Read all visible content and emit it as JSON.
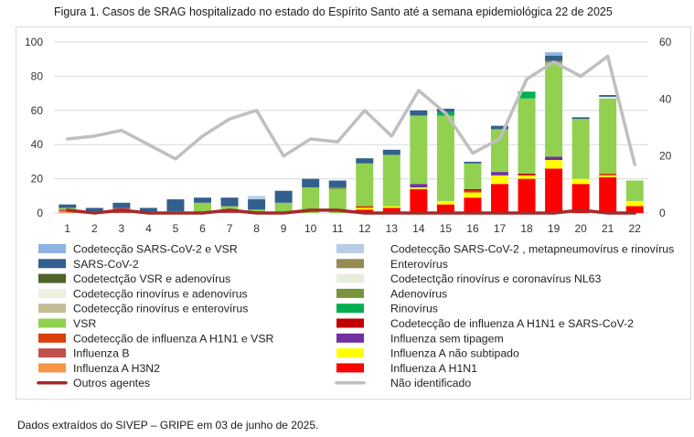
{
  "figure": {
    "title": "Figura 1. Casos de SRAG hospitalizado no estado do Espírito Santo até a semana epidemiológica 22 de 2025",
    "footnote": "Dados extraídos do SIVEP – GRIPE em 03 de junho de 2025."
  },
  "chart_data": {
    "type": "bar",
    "stacked": true,
    "title": "Casos de SRAG hospitalizado no estado do Espírito Santo até a semana epidemiológica 22 de 2025",
    "xlabel": "",
    "ylabel": "",
    "categories": [
      "1",
      "2",
      "3",
      "4",
      "5",
      "6",
      "7",
      "8",
      "9",
      "10",
      "11",
      "12",
      "13",
      "14",
      "15",
      "16",
      "17",
      "18",
      "19",
      "20",
      "21",
      "22"
    ],
    "ylim": [
      0,
      100
    ],
    "yticks": [
      0,
      20,
      40,
      60,
      80,
      100
    ],
    "y2lim": [
      0,
      60
    ],
    "y2ticks": [
      0,
      20,
      40,
      60
    ],
    "grid": true,
    "legend_position": "bottom",
    "series": [
      {
        "name": "Influenza A H1N1",
        "color": "#ff0000",
        "values": [
          0,
          0,
          0,
          0,
          0,
          0,
          0,
          0,
          0,
          0,
          0,
          2,
          3,
          14,
          5,
          9,
          17,
          20,
          26,
          17,
          21,
          4
        ]
      },
      {
        "name": "Influenza A H3N2",
        "color": "#f79646",
        "values": [
          1,
          0,
          0,
          0,
          0,
          0,
          0,
          0,
          0,
          0,
          0,
          0,
          0,
          0,
          0,
          0,
          0,
          0,
          0,
          0,
          0,
          0
        ]
      },
      {
        "name": "Influenza A não subtipado",
        "color": "#ffff00",
        "values": [
          0,
          0,
          0,
          0,
          0,
          0,
          0,
          0,
          0,
          0,
          0,
          1,
          1,
          1,
          2,
          3,
          5,
          2,
          5,
          3,
          1,
          3
        ]
      },
      {
        "name": "Influenza B",
        "color": "#c0504d",
        "values": [
          1,
          0,
          3,
          1,
          0,
          1,
          1,
          1,
          0,
          0,
          0,
          0,
          0,
          0,
          0,
          0,
          0,
          0,
          0,
          0,
          0,
          0
        ]
      },
      {
        "name": "Influenza sem tipagem",
        "color": "#7030a0",
        "values": [
          0,
          0,
          0,
          0,
          0,
          0,
          0,
          0,
          0,
          0,
          0,
          0,
          0,
          2,
          0,
          0,
          2,
          0,
          2,
          0,
          0,
          0
        ]
      },
      {
        "name": "Codetecção de influenza A H1N1 e VSR",
        "color": "#d9400a",
        "values": [
          0,
          0,
          0,
          0,
          0,
          0,
          0,
          0,
          0,
          0,
          0,
          1,
          0,
          0,
          0,
          1,
          0,
          0,
          0,
          0,
          1,
          0
        ]
      },
      {
        "name": "Codetecção de influenza A H1N1 e SARS-CoV-2",
        "color": "#c00000",
        "values": [
          0,
          0,
          0,
          0,
          0,
          0,
          0,
          0,
          0,
          0,
          0,
          0,
          0,
          0,
          0,
          1,
          0,
          1,
          0,
          0,
          0,
          0
        ]
      },
      {
        "name": "VSR",
        "color": "#92d050",
        "values": [
          1,
          0,
          0,
          0,
          1,
          5,
          3,
          1,
          6,
          15,
          14,
          25,
          30,
          40,
          50,
          15,
          25,
          44,
          55,
          35,
          44,
          12
        ]
      },
      {
        "name": "Rinovírus",
        "color": "#00b050",
        "values": [
          0,
          0,
          0,
          0,
          0,
          0,
          0,
          0,
          0,
          0,
          0,
          0,
          0,
          0,
          2,
          0,
          0,
          4,
          0,
          0,
          0,
          0
        ]
      },
      {
        "name": "Adenovírus",
        "color": "#77933c",
        "values": [
          0,
          0,
          0,
          0,
          0,
          0,
          0,
          0,
          0,
          0,
          1,
          0,
          0,
          0,
          0,
          0,
          0,
          0,
          0,
          0,
          0,
          0
        ]
      },
      {
        "name": "Codetecção rinovírus e enterovírus",
        "color": "#c4bd97",
        "values": [
          0,
          0,
          0,
          0,
          0,
          0,
          0,
          0,
          0,
          0,
          0,
          0,
          0,
          0,
          0,
          0,
          0,
          0,
          0,
          0,
          0,
          0
        ]
      },
      {
        "name": "Codetecção rinovírus e adenovírus",
        "color": "#ebf1de",
        "values": [
          0,
          0,
          0,
          0,
          0,
          0,
          0,
          0,
          0,
          0,
          0,
          0,
          0,
          0,
          0,
          0,
          0,
          0,
          0,
          0,
          0,
          0
        ]
      },
      {
        "name": "Codetectção rinovírus e coronavírus NL63",
        "color": "#e8eedc",
        "values": [
          0,
          0,
          0,
          0,
          0,
          0,
          0,
          0,
          0,
          0,
          0,
          0,
          0,
          0,
          0,
          0,
          0,
          0,
          0,
          0,
          1,
          0
        ]
      },
      {
        "name": "Codetectção VSR e adenovírus",
        "color": "#4f6228",
        "values": [
          0,
          0,
          0,
          0,
          0,
          0,
          0,
          0,
          0,
          0,
          0,
          0,
          0,
          0,
          0,
          0,
          0,
          0,
          0,
          0,
          0,
          0
        ]
      },
      {
        "name": "Enterovírus",
        "color": "#948a54",
        "values": [
          0,
          0,
          0,
          0,
          0,
          0,
          0,
          0,
          0,
          0,
          0,
          0,
          0,
          0,
          0,
          0,
          0,
          0,
          1,
          0,
          0,
          0
        ]
      },
      {
        "name": "SARS-CoV-2",
        "color": "#335f8d",
        "values": [
          2,
          3,
          3,
          2,
          7,
          3,
          5,
          6,
          7,
          5,
          4,
          3,
          3,
          3,
          2,
          1,
          2,
          0,
          3,
          1,
          1,
          0
        ]
      },
      {
        "name": "Codetecção SARS-CoV-2 , metapneumovírus e rinovírus",
        "color": "#b9cde5",
        "values": [
          0,
          0,
          0,
          0,
          0,
          0,
          0,
          2,
          0,
          0,
          0,
          0,
          0,
          0,
          0,
          0,
          0,
          0,
          0,
          0,
          0,
          0
        ]
      },
      {
        "name": "Codetecção SARS-CoV-2  e VSR",
        "color": "#8db3e2",
        "values": [
          0,
          0,
          0,
          0,
          0,
          0,
          0,
          0,
          0,
          0,
          0,
          0,
          0,
          0,
          0,
          0,
          0,
          0,
          2,
          0,
          0,
          0
        ]
      }
    ],
    "lines": [
      {
        "name": "Outros agentes",
        "axis": "y2",
        "color": "#a52a2a",
        "values": [
          1,
          0,
          1,
          0,
          0,
          0,
          1,
          0,
          0,
          1,
          1,
          0,
          0,
          0,
          0,
          0,
          0,
          0,
          0,
          1,
          0,
          0
        ]
      },
      {
        "name": "Não identificado",
        "axis": "y2",
        "color": "#bfbfbf",
        "values": [
          26,
          27,
          29,
          24,
          19,
          27,
          33,
          36,
          20,
          26,
          25,
          36,
          27,
          43,
          35,
          21,
          26,
          47,
          53,
          48,
          55,
          17
        ]
      }
    ],
    "legend_order": [
      "Codetecção SARS-CoV-2  e VSR",
      "Codetecção SARS-CoV-2 , metapneumovírus e rinovírus",
      "SARS-CoV-2",
      "Enterovírus",
      "Codetectção VSR e adenovírus",
      "Codetectção rinovírus e coronavírus NL63",
      "Codetecção rinovírus e adenovírus",
      "Adenovírus",
      "Codetecção rinovírus e enterovírus",
      "Rinovírus",
      "VSR",
      "Codetecção de influenza A H1N1 e SARS-CoV-2",
      "Codetecção de influenza A H1N1 e VSR",
      "Influenza sem tipagem",
      "Influenza B",
      "Influenza A não subtipado",
      "Influenza A H3N2",
      "Influenza A H1N1",
      "Outros agentes",
      "Não identificado"
    ]
  }
}
